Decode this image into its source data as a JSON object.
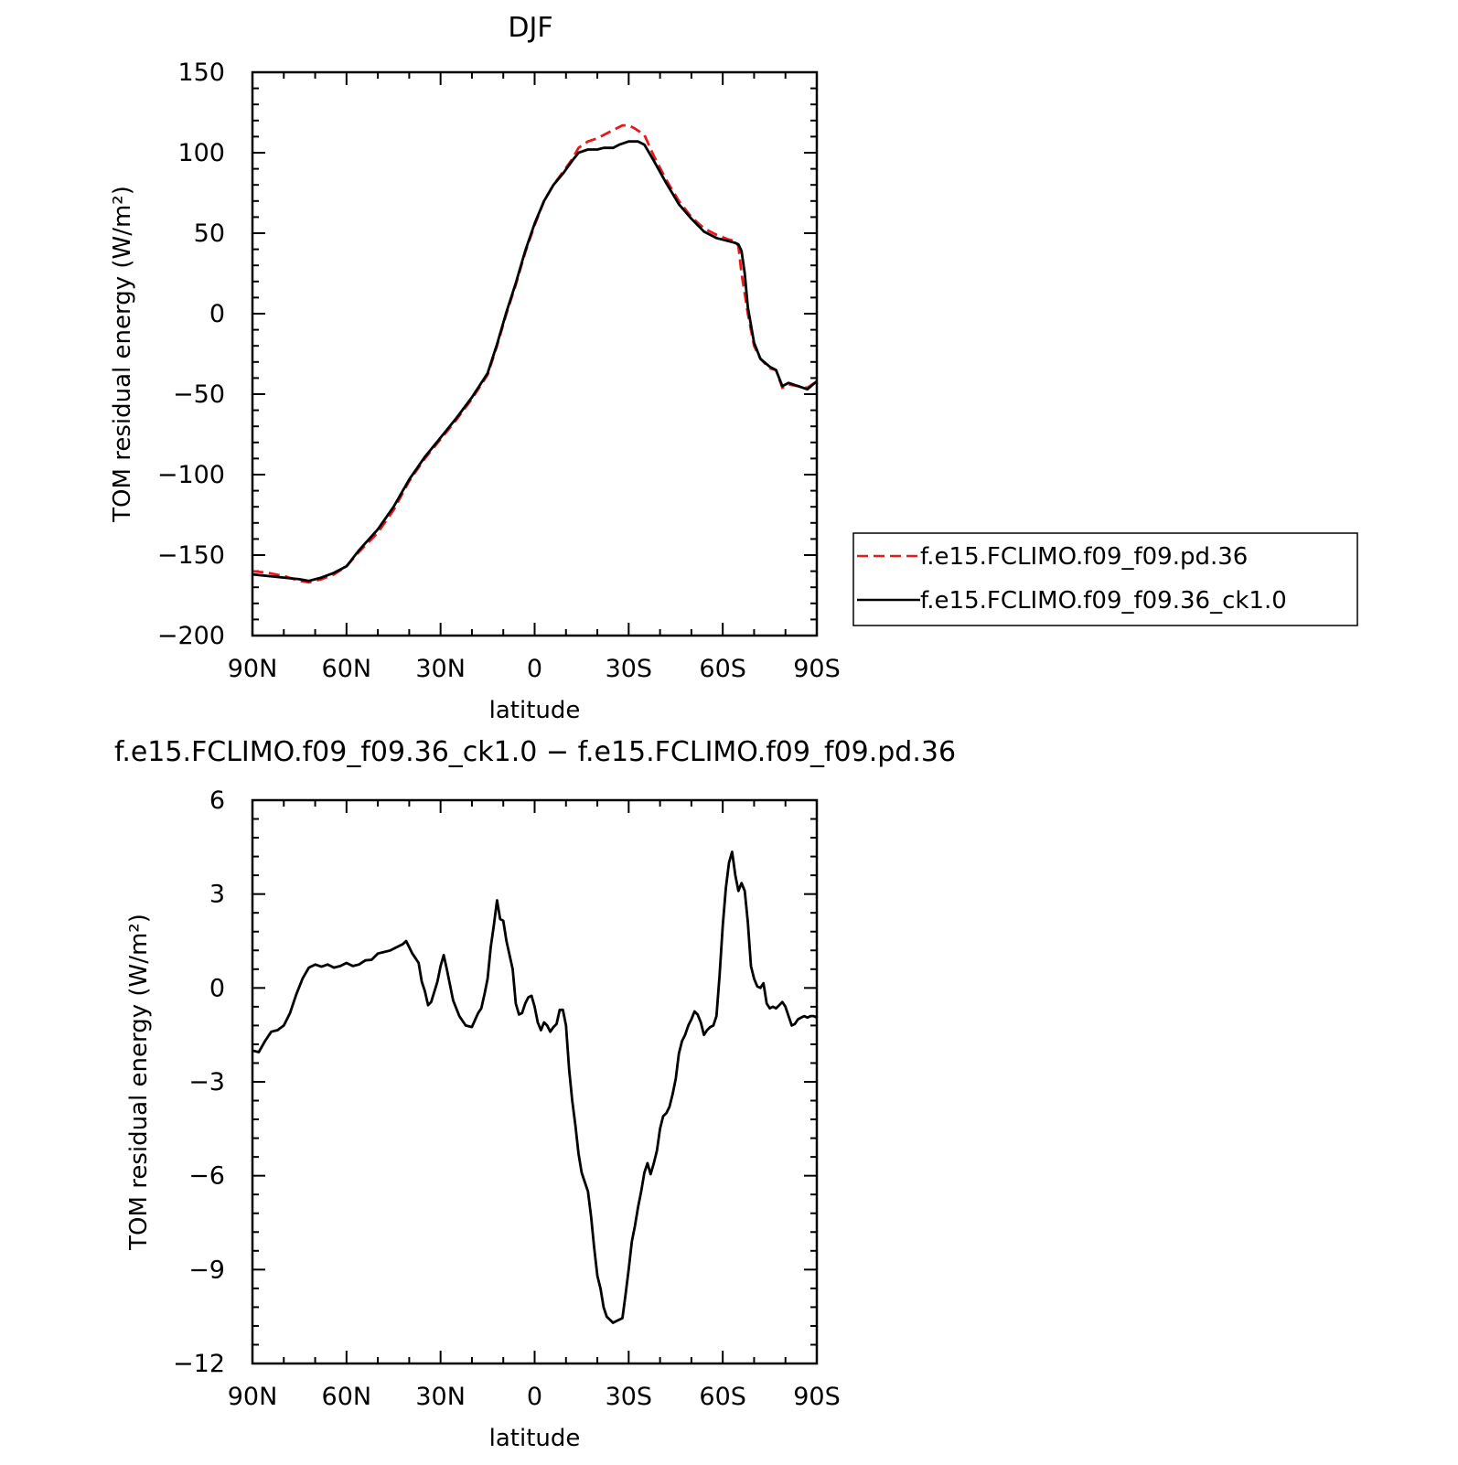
{
  "chart_data": [
    {
      "type": "line",
      "title": "DJF",
      "xlabel": "latitude",
      "ylabel": "TOM residual energy (W/m²)",
      "xlim": [
        -90,
        90
      ],
      "ylim": [
        -200,
        150
      ],
      "x_ticks": [
        -90,
        -60,
        -30,
        0,
        30,
        60,
        90
      ],
      "x_tick_labels": [
        "90N",
        "60N",
        "30N",
        "0",
        "30S",
        "60S",
        "90S"
      ],
      "y_ticks": [
        -200,
        -150,
        -100,
        -50,
        0,
        50,
        100,
        150
      ],
      "y_tick_labels": [
        "−200",
        "−150",
        "−100",
        "−50",
        "0",
        "50",
        "100",
        "150"
      ],
      "legend_position": "right",
      "series": [
        {
          "name": "f.e15.FCLIMO.f09_f09.pd.36",
          "color": "#e8191c",
          "dash": "dashed",
          "points": [
            [
              -90,
              -160
            ],
            [
              -85,
              -161
            ],
            [
              -80,
              -163
            ],
            [
              -75,
              -166
            ],
            [
              -72,
              -167
            ],
            [
              -68,
              -165
            ],
            [
              -64,
              -162
            ],
            [
              -60,
              -157
            ],
            [
              -56,
              -148
            ],
            [
              -50,
              -136
            ],
            [
              -45,
              -122
            ],
            [
              -40,
              -104
            ],
            [
              -35,
              -90
            ],
            [
              -30,
              -78
            ],
            [
              -25,
              -66
            ],
            [
              -20,
              -53
            ],
            [
              -15,
              -38
            ],
            [
              -12,
              -20
            ],
            [
              -9,
              0
            ],
            [
              -6,
              18
            ],
            [
              -3,
              38
            ],
            [
              0,
              55
            ],
            [
              3,
              70
            ],
            [
              6,
              80
            ],
            [
              9,
              88
            ],
            [
              12,
              96
            ],
            [
              14,
              103
            ],
            [
              17,
              107
            ],
            [
              20,
              109
            ],
            [
              23,
              112
            ],
            [
              26,
              115
            ],
            [
              28,
              117
            ],
            [
              30,
              117
            ],
            [
              32,
              115
            ],
            [
              35,
              111
            ],
            [
              38,
              98
            ],
            [
              42,
              83
            ],
            [
              46,
              70
            ],
            [
              50,
              60
            ],
            [
              54,
              53
            ],
            [
              58,
              49
            ],
            [
              62,
              46
            ],
            [
              64,
              45
            ],
            [
              65,
              42
            ],
            [
              66,
              25
            ],
            [
              68,
              0
            ],
            [
              70,
              -20
            ],
            [
              72,
              -28
            ],
            [
              75,
              -34
            ],
            [
              77,
              -35
            ],
            [
              79,
              -46
            ],
            [
              81,
              -44
            ],
            [
              84,
              -45
            ],
            [
              87,
              -46
            ],
            [
              90,
              -42
            ]
          ]
        },
        {
          "name": "f.e15.FCLIMO.f09_f09.36_ck1.0",
          "color": "#000000",
          "dash": "solid",
          "points": [
            [
              -90,
              -162
            ],
            [
              -85,
              -163
            ],
            [
              -80,
              -164
            ],
            [
              -75,
              -165
            ],
            [
              -72,
              -166
            ],
            [
              -68,
              -164
            ],
            [
              -64,
              -161
            ],
            [
              -60,
              -157
            ],
            [
              -56,
              -147
            ],
            [
              -50,
              -134
            ],
            [
              -45,
              -120
            ],
            [
              -40,
              -103
            ],
            [
              -35,
              -89
            ],
            [
              -30,
              -77
            ],
            [
              -25,
              -65
            ],
            [
              -20,
              -52
            ],
            [
              -15,
              -37
            ],
            [
              -12,
              -19
            ],
            [
              -9,
              1
            ],
            [
              -6,
              19
            ],
            [
              -3,
              39
            ],
            [
              0,
              56
            ],
            [
              3,
              70
            ],
            [
              6,
              80
            ],
            [
              9,
              87
            ],
            [
              12,
              95
            ],
            [
              14,
              100
            ],
            [
              17,
              102
            ],
            [
              20,
              102
            ],
            [
              22,
              103
            ],
            [
              25,
              103
            ],
            [
              27,
              105
            ],
            [
              30,
              107
            ],
            [
              33,
              107
            ],
            [
              35,
              105
            ],
            [
              38,
              95
            ],
            [
              42,
              81
            ],
            [
              46,
              68
            ],
            [
              50,
              59
            ],
            [
              54,
              51
            ],
            [
              58,
              47
            ],
            [
              62,
              45
            ],
            [
              64,
              44
            ],
            [
              65,
              43
            ],
            [
              66,
              39
            ],
            [
              67,
              25
            ],
            [
              68,
              4
            ],
            [
              70,
              -18
            ],
            [
              72,
              -28
            ],
            [
              75,
              -33
            ],
            [
              77,
              -35
            ],
            [
              79,
              -45
            ],
            [
              81,
              -43
            ],
            [
              84,
              -45
            ],
            [
              87,
              -47
            ],
            [
              90,
              -42
            ]
          ]
        }
      ]
    },
    {
      "type": "line",
      "title": "f.e15.FCLIMO.f09_f09.36_ck1.0 − f.e15.FCLIMO.f09_f09.pd.36",
      "xlabel": "latitude",
      "ylabel": "TOM residual energy (W/m²)",
      "xlim": [
        -90,
        90
      ],
      "ylim": [
        -12,
        6
      ],
      "x_ticks": [
        -90,
        -60,
        -30,
        0,
        30,
        60,
        90
      ],
      "x_tick_labels": [
        "90N",
        "60N",
        "30N",
        "0",
        "30S",
        "60S",
        "90S"
      ],
      "y_ticks": [
        -12,
        -9,
        -6,
        -3,
        0,
        3,
        6
      ],
      "y_tick_labels": [
        "−12",
        "−9",
        "−6",
        "−3",
        "0",
        "3",
        "6"
      ],
      "series": [
        {
          "color": "#000000",
          "dash": "solid",
          "points": [
            [
              -90,
              -2.0
            ],
            [
              -88,
              -2.05
            ],
            [
              -86,
              -1.7
            ],
            [
              -84,
              -1.4
            ],
            [
              -82,
              -1.35
            ],
            [
              -80,
              -1.2
            ],
            [
              -78,
              -0.8
            ],
            [
              -76,
              -0.2
            ],
            [
              -74,
              0.3
            ],
            [
              -72,
              0.65
            ],
            [
              -70,
              0.75
            ],
            [
              -68,
              0.68
            ],
            [
              -66,
              0.75
            ],
            [
              -64,
              0.65
            ],
            [
              -62,
              0.7
            ],
            [
              -60,
              0.8
            ],
            [
              -58,
              0.7
            ],
            [
              -56,
              0.75
            ],
            [
              -54,
              0.88
            ],
            [
              -52,
              0.9
            ],
            [
              -50,
              1.1
            ],
            [
              -48,
              1.15
            ],
            [
              -46,
              1.2
            ],
            [
              -44,
              1.3
            ],
            [
              -42,
              1.4
            ],
            [
              -41,
              1.5
            ],
            [
              -40,
              1.3
            ],
            [
              -39,
              1.1
            ],
            [
              -37,
              0.8
            ],
            [
              -36,
              0.2
            ],
            [
              -35,
              -0.1
            ],
            [
              -34,
              -0.55
            ],
            [
              -33,
              -0.45
            ],
            [
              -31,
              0.2
            ],
            [
              -30,
              0.7
            ],
            [
              -29,
              1.05
            ],
            [
              -28,
              0.6
            ],
            [
              -26,
              -0.4
            ],
            [
              -24,
              -0.9
            ],
            [
              -22,
              -1.2
            ],
            [
              -20,
              -1.25
            ],
            [
              -18,
              -0.8
            ],
            [
              -17,
              -0.65
            ],
            [
              -16,
              -0.2
            ],
            [
              -15,
              0.3
            ],
            [
              -14,
              1.3
            ],
            [
              -13,
              2.0
            ],
            [
              -12,
              2.8
            ],
            [
              -11,
              2.2
            ],
            [
              -10,
              2.15
            ],
            [
              -9,
              1.5
            ],
            [
              -7,
              0.6
            ],
            [
              -6,
              -0.5
            ],
            [
              -5,
              -0.85
            ],
            [
              -4,
              -0.8
            ],
            [
              -3,
              -0.5
            ],
            [
              -2,
              -0.3
            ],
            [
              -1,
              -0.25
            ],
            [
              0,
              -0.6
            ],
            [
              1,
              -1.1
            ],
            [
              2,
              -1.35
            ],
            [
              3,
              -1.1
            ],
            [
              4,
              -1.2
            ],
            [
              5,
              -1.4
            ],
            [
              6,
              -1.25
            ],
            [
              7,
              -1.15
            ],
            [
              8,
              -0.7
            ],
            [
              9,
              -0.7
            ],
            [
              10,
              -1.2
            ],
            [
              11,
              -2.6
            ],
            [
              12,
              -3.6
            ],
            [
              13,
              -4.4
            ],
            [
              14,
              -5.3
            ],
            [
              15,
              -5.9
            ],
            [
              16,
              -6.2
            ],
            [
              17,
              -6.5
            ],
            [
              18,
              -7.3
            ],
            [
              19,
              -8.3
            ],
            [
              20,
              -9.2
            ],
            [
              21,
              -9.6
            ],
            [
              22,
              -10.2
            ],
            [
              23,
              -10.5
            ],
            [
              24,
              -10.6
            ],
            [
              25,
              -10.7
            ],
            [
              26,
              -10.65
            ],
            [
              27,
              -10.6
            ],
            [
              28,
              -10.55
            ],
            [
              29,
              -9.8
            ],
            [
              30,
              -9.0
            ],
            [
              31,
              -8.1
            ],
            [
              32,
              -7.6
            ],
            [
              33,
              -7.0
            ],
            [
              34,
              -6.5
            ],
            [
              35,
              -5.9
            ],
            [
              36,
              -5.6
            ],
            [
              37,
              -5.95
            ],
            [
              38,
              -5.6
            ],
            [
              39,
              -5.2
            ],
            [
              40,
              -4.5
            ],
            [
              41,
              -4.1
            ],
            [
              42,
              -4.0
            ],
            [
              43,
              -3.8
            ],
            [
              44,
              -3.4
            ],
            [
              45,
              -2.9
            ],
            [
              46,
              -2.1
            ],
            [
              47,
              -1.7
            ],
            [
              48,
              -1.5
            ],
            [
              49,
              -1.2
            ],
            [
              50,
              -1.0
            ],
            [
              51,
              -0.75
            ],
            [
              52,
              -0.85
            ],
            [
              53,
              -1.1
            ],
            [
              54,
              -1.5
            ],
            [
              55,
              -1.35
            ],
            [
              56,
              -1.25
            ],
            [
              57,
              -1.2
            ],
            [
              58,
              -0.9
            ],
            [
              59,
              0.4
            ],
            [
              60,
              2.0
            ],
            [
              61,
              3.2
            ],
            [
              62,
              4.0
            ],
            [
              63,
              4.35
            ],
            [
              64,
              3.6
            ],
            [
              65,
              3.1
            ],
            [
              66,
              3.35
            ],
            [
              67,
              3.1
            ],
            [
              68,
              2.1
            ],
            [
              69,
              0.7
            ],
            [
              70,
              0.3
            ],
            [
              71,
              0.05
            ],
            [
              72,
              0.0
            ],
            [
              73,
              0.15
            ],
            [
              74,
              -0.5
            ],
            [
              75,
              -0.65
            ],
            [
              76,
              -0.6
            ],
            [
              77,
              -0.65
            ],
            [
              78,
              -0.55
            ],
            [
              79,
              -0.45
            ],
            [
              80,
              -0.6
            ],
            [
              81,
              -0.9
            ],
            [
              82,
              -1.2
            ],
            [
              83,
              -1.15
            ],
            [
              84,
              -1.0
            ],
            [
              85,
              -0.95
            ],
            [
              86,
              -0.9
            ],
            [
              87,
              -0.95
            ],
            [
              88,
              -0.9
            ],
            [
              89,
              -0.9
            ],
            [
              90,
              -0.95
            ]
          ]
        }
      ]
    }
  ]
}
